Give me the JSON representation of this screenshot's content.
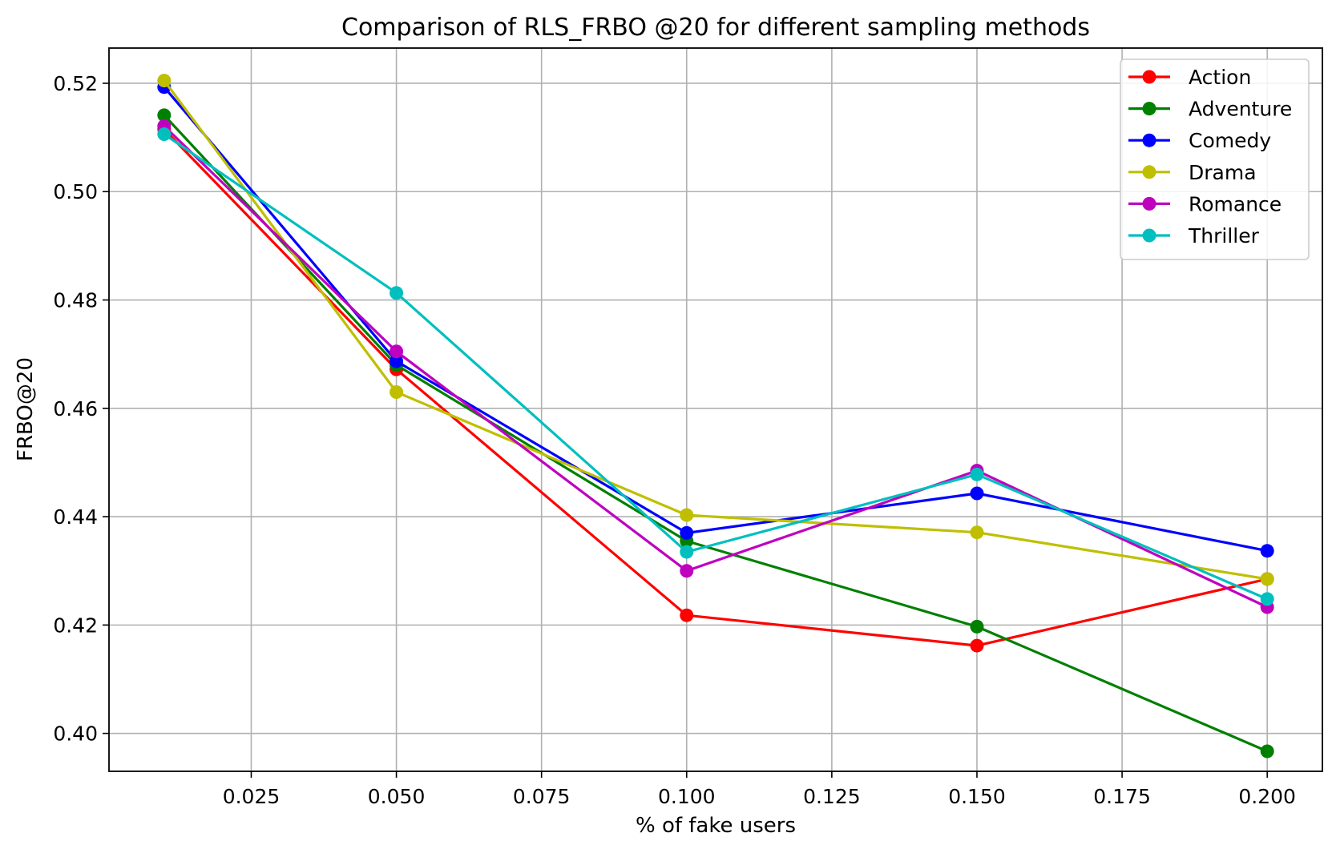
{
  "chart_data": {
    "type": "line",
    "title": "Comparison of RLS_FRBO @20 for different sampling methods",
    "xlabel": "% of fake users",
    "ylabel": "FRBO@20",
    "x": [
      0.01,
      0.05,
      0.1,
      0.15,
      0.2
    ],
    "xlim": [
      0.0005,
      0.2095
    ],
    "ylim": [
      0.393,
      0.5265
    ],
    "xticks": [
      0.025,
      0.05,
      0.075,
      0.1,
      0.125,
      0.15,
      0.175,
      0.2
    ],
    "xtick_labels": [
      "0.025",
      "0.050",
      "0.075",
      "0.100",
      "0.125",
      "0.150",
      "0.175",
      "0.200"
    ],
    "yticks": [
      0.4,
      0.42,
      0.44,
      0.46,
      0.48,
      0.5,
      0.52
    ],
    "ytick_labels": [
      "0.40",
      "0.42",
      "0.44",
      "0.46",
      "0.48",
      "0.50",
      "0.52"
    ],
    "grid": true,
    "legend_position": "top-right",
    "series": [
      {
        "name": "Action",
        "color": "#ff0000",
        "values": [
          0.5115,
          0.4672,
          0.4218,
          0.4162,
          0.4285
        ]
      },
      {
        "name": "Adventure",
        "color": "#008000",
        "values": [
          0.5141,
          0.468,
          0.4355,
          0.4197,
          0.3967
        ]
      },
      {
        "name": "Comedy",
        "color": "#0000ff",
        "values": [
          0.5193,
          0.4687,
          0.437,
          0.4443,
          0.4337
        ]
      },
      {
        "name": "Drama",
        "color": "#bfbf00",
        "values": [
          0.5205,
          0.463,
          0.4403,
          0.4371,
          0.4285
        ]
      },
      {
        "name": "Romance",
        "color": "#bf00bf",
        "values": [
          0.5121,
          0.4705,
          0.43,
          0.4485,
          0.4233
        ]
      },
      {
        "name": "Thriller",
        "color": "#00bfbf",
        "values": [
          0.5106,
          0.4813,
          0.4335,
          0.4478,
          0.4248
        ]
      }
    ]
  }
}
